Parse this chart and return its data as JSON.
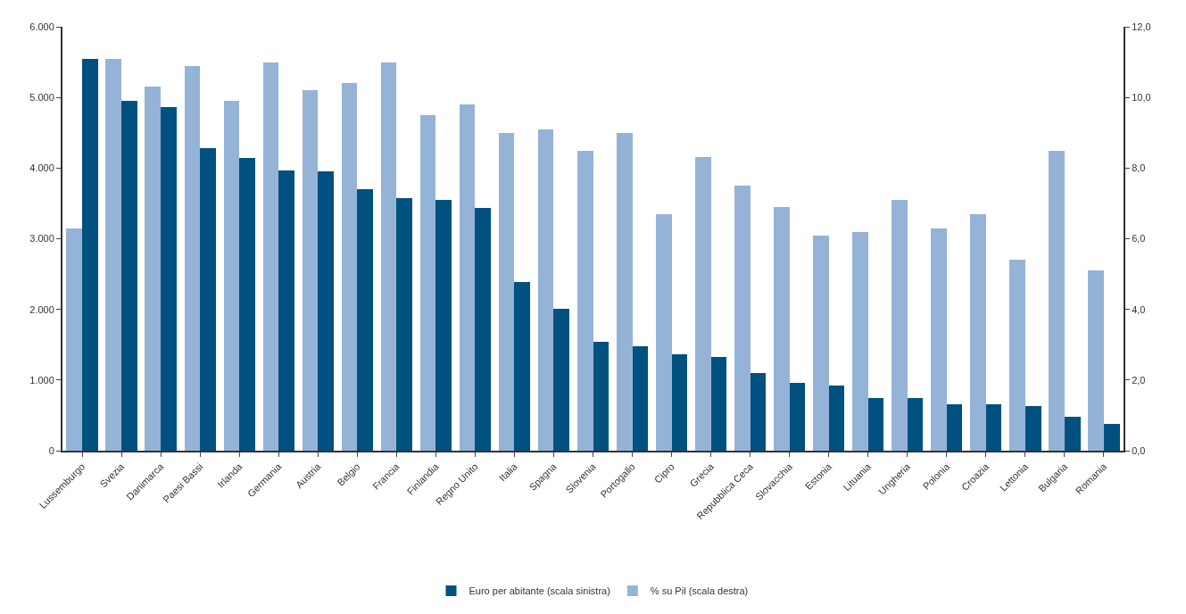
{
  "chart_data": {
    "type": "bar",
    "categories": [
      "Lussemburgo",
      "Svezia",
      "Danimarca",
      "Paesi Bassi",
      "Irlanda",
      "Germania",
      "Austria",
      "Belgio",
      "Francia",
      "Finlandia",
      "Regno Unito",
      "Italia",
      "Spagna",
      "Slovenia",
      "Portogallo",
      "Cipro",
      "Grecia",
      "Repubblica Ceca",
      "Slovacchia",
      "Estonia",
      "Lituania",
      "Ungheria",
      "Polonia",
      "Croazia",
      "Lettonia",
      "Bulgaria",
      "Romania"
    ],
    "series": [
      {
        "name": "% su Pil (scala destra)",
        "color": "#95b3d7",
        "axis": "y2",
        "values": [
          6.3,
          11.1,
          10.3,
          10.9,
          9.9,
          11.0,
          10.2,
          10.4,
          11.0,
          9.5,
          9.8,
          9.0,
          9.1,
          8.5,
          9.0,
          6.7,
          8.3,
          7.5,
          6.9,
          6.1,
          6.2,
          7.1,
          6.3,
          6.7,
          5.4,
          8.5,
          5.1
        ]
      },
      {
        "name": "Euro per abitante (scala sinistra)",
        "color": "#00517f",
        "values": [
          5550,
          4950,
          4860,
          4280,
          4140,
          3970,
          3950,
          3700,
          3580,
          3550,
          3430,
          2390,
          2010,
          1540,
          1480,
          1370,
          1330,
          1100,
          960,
          920,
          750,
          750,
          660,
          660,
          630,
          480,
          380
        ]
      }
    ],
    "ylim": [
      0,
      6000
    ],
    "yticks": [
      0,
      {
        "value": 1000,
        "label": "1.000"
      },
      {
        "value": 2000,
        "label": "2.000"
      },
      {
        "value": 3000,
        "label": "3.000"
      },
      {
        "value": 4000,
        "label": "4.000"
      },
      {
        "value": 5000,
        "label": "5.000"
      },
      {
        "value": 6000,
        "label": "6.000"
      }
    ],
    "y2lim": [
      0,
      12
    ],
    "y2ticks": [
      {
        "value": 0,
        "label": "0,0"
      },
      {
        "value": 2,
        "label": "2,0"
      },
      {
        "value": 4,
        "label": "4,0"
      },
      {
        "value": 6,
        "label": "6,0"
      },
      {
        "value": 8,
        "label": "8,0"
      },
      {
        "value": 10,
        "label": "10,0"
      },
      {
        "value": 12,
        "label": "12,0"
      }
    ],
    "legend": "bottom"
  }
}
